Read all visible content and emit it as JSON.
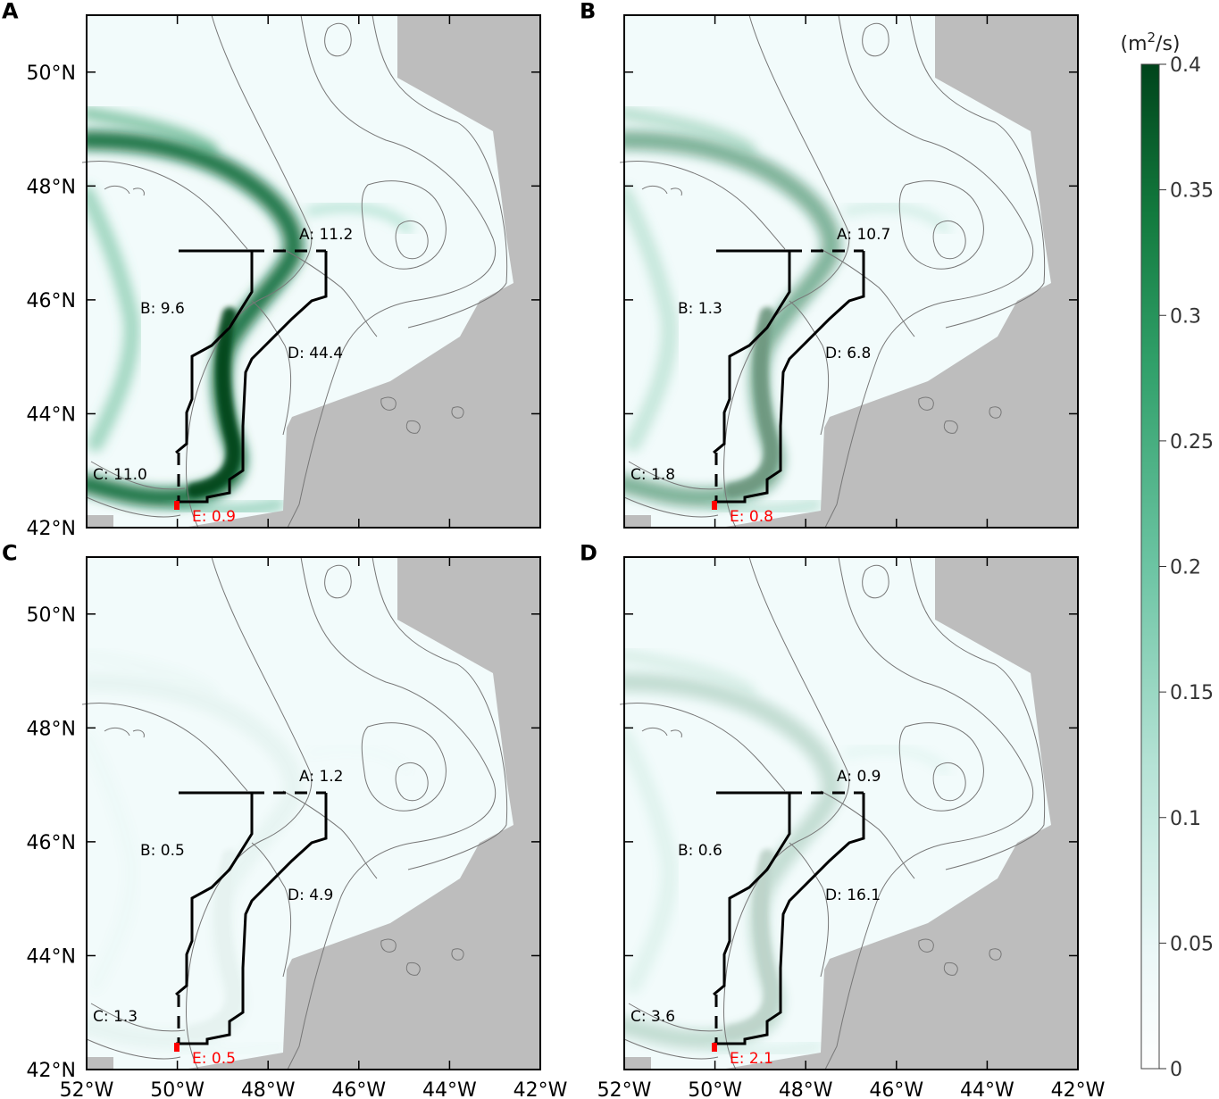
{
  "lon_labels": [
    "52°W",
    "50°W",
    "48°W",
    "46°W",
    "44°W",
    "42°W"
  ],
  "lat_labels": [
    "42°N",
    "44°N",
    "46°N",
    "48°N",
    "50°N"
  ],
  "colorbar": {
    "unit_prefix": "(m",
    "unit_sup": "2",
    "unit_suffix": "/s)",
    "ticks": [
      "0",
      "0.05",
      "0.1",
      "0.15",
      "0.2",
      "0.25",
      "0.3",
      "0.35",
      "0.4"
    ],
    "range": [
      0,
      0.4
    ],
    "color_low": "#ffffff",
    "color_high": "#00441b"
  },
  "colors": {
    "land": "#bdbdbd",
    "ocean": "#f2fbfb",
    "region_text": "#000000",
    "region_e_text": "#ff0000",
    "contour": "#777777"
  },
  "panels": [
    {
      "id": "A",
      "label": "A",
      "intensity": 1.0,
      "regions": [
        {
          "key": "A",
          "text": "A: 11.2",
          "value": 11.2
        },
        {
          "key": "B",
          "text": "B: 9.6",
          "value": 9.6
        },
        {
          "key": "C",
          "text": "C: 11.0",
          "value": 11.0
        },
        {
          "key": "D",
          "text": "D: 44.4",
          "value": 44.4
        },
        {
          "key": "E",
          "text": "E: 0.9",
          "value": 0.9
        }
      ]
    },
    {
      "id": "B",
      "label": "B",
      "intensity": 0.55,
      "regions": [
        {
          "key": "A",
          "text": "A: 10.7",
          "value": 10.7
        },
        {
          "key": "B",
          "text": "B: 1.3",
          "value": 1.3
        },
        {
          "key": "C",
          "text": "C: 1.8",
          "value": 1.8
        },
        {
          "key": "D",
          "text": "D: 6.8",
          "value": 6.8
        },
        {
          "key": "E",
          "text": "E: 0.8",
          "value": 0.8
        }
      ]
    },
    {
      "id": "C",
      "label": "C",
      "intensity": 0.05,
      "regions": [
        {
          "key": "A",
          "text": "A: 1.2",
          "value": 1.2
        },
        {
          "key": "B",
          "text": "B: 0.5",
          "value": 0.5
        },
        {
          "key": "C",
          "text": "C: 1.3",
          "value": 1.3
        },
        {
          "key": "D",
          "text": "D: 4.9",
          "value": 4.9
        },
        {
          "key": "E",
          "text": "E: 0.5",
          "value": 0.5
        }
      ]
    },
    {
      "id": "D",
      "label": "D",
      "intensity": 0.22,
      "regions": [
        {
          "key": "A",
          "text": "A: 0.9",
          "value": 0.9
        },
        {
          "key": "B",
          "text": "B: 0.6",
          "value": 0.6
        },
        {
          "key": "C",
          "text": "C: 3.6",
          "value": 3.6
        },
        {
          "key": "D",
          "text": "D: 16.1",
          "value": 16.1
        },
        {
          "key": "E",
          "text": "E: 2.1",
          "value": 2.1
        }
      ]
    }
  ]
}
